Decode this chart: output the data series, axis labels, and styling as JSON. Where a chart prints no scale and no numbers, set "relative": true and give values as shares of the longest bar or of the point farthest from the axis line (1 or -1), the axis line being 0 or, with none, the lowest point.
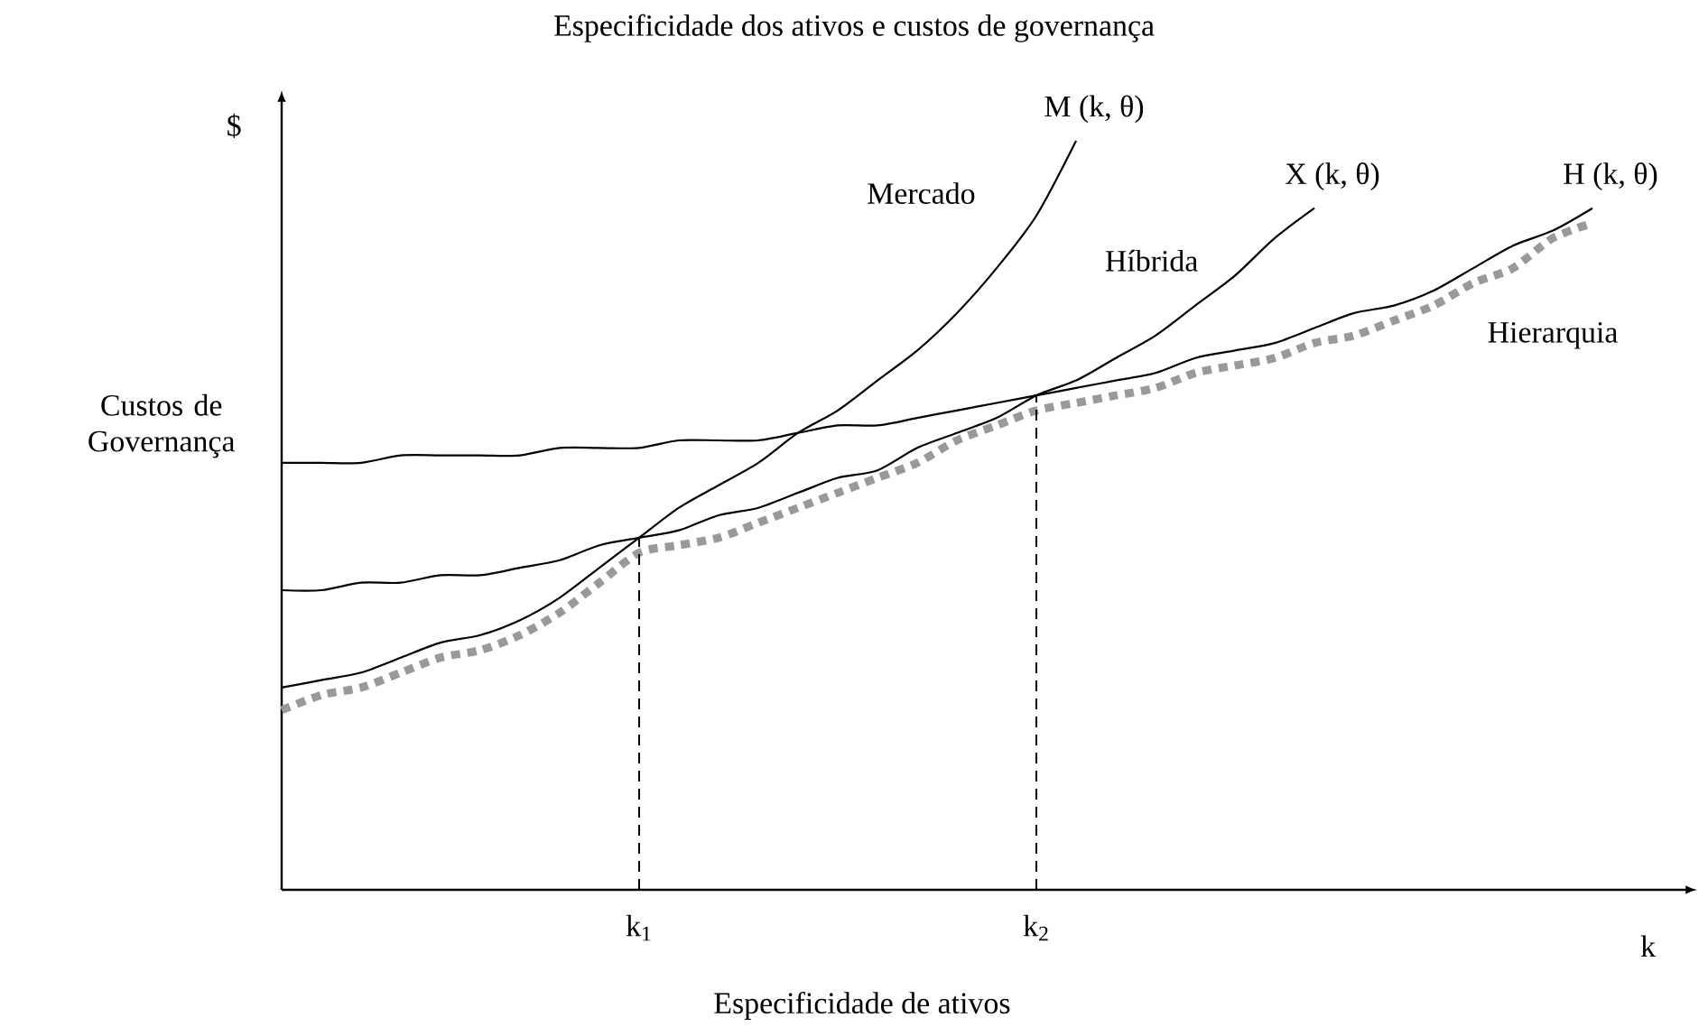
{
  "chart_data": {
    "type": "line",
    "title": "Especificidade dos ativos e custos de governança",
    "xlabel": "Especificidade de ativos",
    "ylabel": "Custos de Governança",
    "relative": true,
    "categories": [
      null,
      null,
      null,
      null,
      null,
      null,
      null,
      null,
      null,
      "k$_{1}$",
      null,
      null,
      null,
      null,
      null,
      null,
      null,
      null,
      null,
      "k$_{2}$",
      null,
      null,
      null,
      null,
      null,
      null,
      null,
      null,
      null,
      null,
      null,
      null,
      null,
      null
    ],
    "series": [
      {
        "name": "H (k, θ)",
        "color": "#000000",
        "line_style": "solid",
        "values": [
          0.57,
          0.57,
          0.57,
          0.58,
          0.58,
          0.58,
          0.58,
          0.59,
          0.59,
          0.59,
          0.6,
          0.6,
          0.6,
          0.61,
          0.62,
          0.62,
          0.63,
          0.64,
          0.65,
          0.66,
          0.67,
          0.68,
          0.69,
          0.71,
          0.72,
          0.73,
          0.75,
          0.77,
          0.78,
          0.8,
          0.83,
          0.86,
          0.88,
          0.91
        ]
      },
      {
        "name": "X (k, θ)",
        "color": "#000000",
        "line_style": "solid",
        "values": [
          0.4,
          0.4,
          0.41,
          0.41,
          0.42,
          0.42,
          0.43,
          0.44,
          0.46,
          0.47,
          0.48,
          0.5,
          0.51,
          0.53,
          0.55,
          0.56,
          0.59,
          0.61,
          0.63,
          0.66,
          0.68,
          0.71,
          0.74,
          0.78,
          0.82,
          0.87,
          0.91,
          null,
          null,
          null,
          null,
          null,
          null,
          null
        ]
      },
      {
        "name": "M (k, θ)",
        "color": "#000000",
        "line_style": "solid",
        "values": [
          0.27,
          0.28,
          0.29,
          0.31,
          0.33,
          0.34,
          0.36,
          0.39,
          0.43,
          0.47,
          0.51,
          0.54,
          0.57,
          0.61,
          0.64,
          0.68,
          0.72,
          0.77,
          0.83,
          0.9,
          1,
          null,
          null,
          null,
          null,
          null,
          null,
          null,
          null,
          null,
          null,
          null,
          null,
          null
        ]
      },
      {
        "color": "#999999",
        "line_style": "dotted",
        "values": [
          0.24,
          0.26,
          0.27,
          0.29,
          0.31,
          0.32,
          0.34,
          0.37,
          0.41,
          0.45,
          0.46,
          0.47,
          0.49,
          0.51,
          0.53,
          0.55,
          0.57,
          0.6,
          0.62,
          0.64,
          0.65,
          0.66,
          0.67,
          0.69,
          0.7,
          0.71,
          0.73,
          0.74,
          0.76,
          0.78,
          0.81,
          0.83,
          0.87,
          0.89
        ]
      }
    ],
    "ref_lines": [
      {
        "axis": "x",
        "value": "k$_{1}$",
        "line_style": "dashed"
      },
      {
        "axis": "x",
        "value": "k$_{2}$",
        "line_style": "dashed"
      }
    ],
    "annotations": [
      "Mercado",
      "Híbrida",
      "Hierarquia",
      "$",
      "k"
    ]
  }
}
